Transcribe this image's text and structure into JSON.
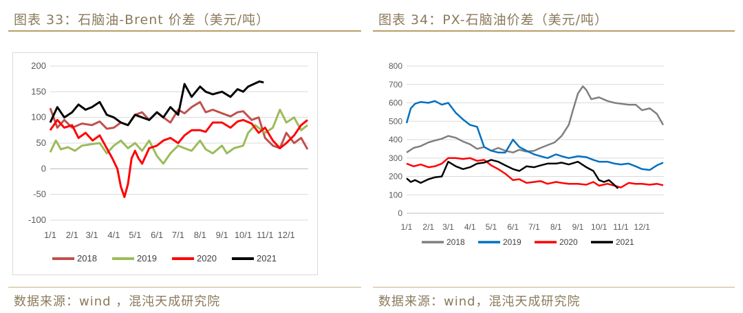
{
  "left": {
    "caption": "图表 33：石脑油-Brent 价差（美元/吨）",
    "source": "数据来源：wind ，混沌天成研究院"
  },
  "right": {
    "caption": "图表 34：PX-石脑油价差（美元/吨）",
    "source": "数据来源：wind，混沌天成研究院"
  },
  "chart_data": [
    {
      "type": "line",
      "title": "",
      "x_tick_labels": [
        "1/1",
        "2/1",
        "3/1",
        "4/1",
        "5/1",
        "6/1",
        "7/1",
        "8/1",
        "9/1",
        "10/1",
        "11/1",
        "12/1"
      ],
      "x_unit": "day_of_year",
      "ylim": [
        -100,
        200
      ],
      "yticks": [
        -100,
        -50,
        0,
        50,
        100,
        150,
        200
      ],
      "grid": true,
      "legend_position": "bottom",
      "series": [
        {
          "name": "2018",
          "color": "#c0504d",
          "x": [
            0,
            10,
            20,
            31,
            45,
            59,
            70,
            80,
            90,
            100,
            110,
            120,
            130,
            140,
            151,
            160,
            170,
            181,
            190,
            200,
            212,
            220,
            230,
            243,
            255,
            265,
            273,
            285,
            295,
            304,
            315,
            325,
            334,
            345,
            355,
            364
          ],
          "y": [
            118,
            80,
            95,
            80,
            88,
            85,
            92,
            78,
            80,
            90,
            85,
            105,
            110,
            95,
            110,
            100,
            90,
            115,
            108,
            120,
            130,
            110,
            115,
            108,
            102,
            110,
            112,
            95,
            100,
            60,
            45,
            40,
            70,
            50,
            60,
            38
          ]
        },
        {
          "name": "2019",
          "color": "#9bbb59",
          "x": [
            0,
            8,
            15,
            25,
            35,
            45,
            59,
            70,
            80,
            90,
            100,
            110,
            120,
            130,
            140,
            151,
            160,
            170,
            181,
            190,
            200,
            212,
            220,
            230,
            243,
            250,
            260,
            273,
            280,
            290,
            304,
            315,
            325,
            334,
            345,
            355,
            364
          ],
          "y": [
            32,
            55,
            38,
            42,
            35,
            45,
            48,
            50,
            30,
            45,
            55,
            40,
            50,
            35,
            55,
            25,
            10,
            30,
            45,
            40,
            35,
            55,
            38,
            30,
            45,
            30,
            40,
            45,
            70,
            85,
            70,
            80,
            115,
            90,
            100,
            75,
            85
          ]
        },
        {
          "name": "2020",
          "color": "#ff0000",
          "x": [
            0,
            10,
            20,
            31,
            40,
            50,
            60,
            70,
            80,
            88,
            95,
            100,
            105,
            110,
            115,
            120,
            125,
            130,
            135,
            140,
            151,
            160,
            170,
            181,
            190,
            200,
            212,
            220,
            230,
            243,
            255,
            265,
            273,
            285,
            295,
            304,
            315,
            325,
            334,
            345,
            355,
            364
          ],
          "y": [
            75,
            95,
            80,
            85,
            60,
            70,
            55,
            65,
            40,
            20,
            0,
            -35,
            -55,
            -30,
            20,
            35,
            20,
            10,
            25,
            40,
            45,
            55,
            60,
            50,
            65,
            75,
            75,
            72,
            90,
            90,
            80,
            92,
            95,
            88,
            70,
            80,
            55,
            40,
            50,
            65,
            85,
            95
          ]
        },
        {
          "name": "2021",
          "color": "#000000",
          "x": [
            0,
            10,
            20,
            31,
            40,
            50,
            59,
            70,
            80,
            90,
            100,
            110,
            120,
            130,
            140,
            151,
            160,
            170,
            181,
            190,
            200,
            212,
            220,
            230,
            243,
            255,
            265,
            273,
            280,
            288,
            296,
            302
          ],
          "y": [
            90,
            120,
            100,
            110,
            125,
            115,
            120,
            130,
            105,
            100,
            90,
            85,
            105,
            100,
            95,
            110,
            100,
            120,
            105,
            165,
            140,
            160,
            150,
            145,
            150,
            140,
            155,
            150,
            160,
            165,
            170,
            168
          ]
        }
      ]
    },
    {
      "type": "line",
      "title": "",
      "x_tick_labels": [
        "1/1",
        "2/1",
        "3/1",
        "4/1",
        "5/1",
        "6/1",
        "7/1",
        "8/1",
        "9/1",
        "10/1",
        "11/1",
        "12/1"
      ],
      "x_unit": "day_of_year",
      "ylim": [
        0,
        800
      ],
      "yticks": [
        0,
        100,
        200,
        300,
        400,
        500,
        600,
        700,
        800
      ],
      "grid": true,
      "legend_position": "bottom",
      "series": [
        {
          "name": "2018",
          "color": "#7f7f7f",
          "x": [
            0,
            10,
            20,
            31,
            40,
            50,
            59,
            70,
            80,
            90,
            100,
            110,
            120,
            130,
            140,
            151,
            160,
            170,
            181,
            190,
            200,
            210,
            220,
            230,
            236,
            243,
            250,
            255,
            262,
            273,
            285,
            295,
            304,
            315,
            325,
            334,
            345,
            355,
            364
          ],
          "y": [
            330,
            355,
            365,
            385,
            395,
            405,
            420,
            410,
            390,
            375,
            350,
            360,
            340,
            355,
            340,
            330,
            345,
            335,
            340,
            355,
            370,
            385,
            420,
            480,
            560,
            650,
            690,
            670,
            620,
            630,
            610,
            600,
            595,
            590,
            590,
            560,
            570,
            540,
            480
          ]
        },
        {
          "name": "2019",
          "color": "#0070c0",
          "x": [
            0,
            6,
            12,
            20,
            31,
            40,
            50,
            59,
            70,
            80,
            90,
            100,
            110,
            120,
            130,
            140,
            151,
            160,
            170,
            181,
            190,
            200,
            212,
            220,
            230,
            243,
            255,
            265,
            273,
            285,
            295,
            304,
            315,
            325,
            334,
            345,
            355,
            364
          ],
          "y": [
            490,
            570,
            595,
            605,
            600,
            610,
            590,
            600,
            545,
            510,
            480,
            470,
            360,
            340,
            330,
            330,
            400,
            360,
            340,
            320,
            310,
            300,
            320,
            310,
            300,
            310,
            305,
            290,
            280,
            280,
            270,
            265,
            270,
            255,
            240,
            235,
            260,
            275
          ]
        },
        {
          "name": "2020",
          "color": "#ff0000",
          "x": [
            0,
            10,
            20,
            31,
            40,
            50,
            59,
            70,
            80,
            90,
            100,
            110,
            120,
            130,
            140,
            151,
            160,
            170,
            181,
            190,
            200,
            212,
            220,
            230,
            243,
            255,
            265,
            273,
            285,
            295,
            304,
            315,
            325,
            334,
            345,
            355,
            364
          ],
          "y": [
            270,
            255,
            265,
            250,
            255,
            270,
            300,
            300,
            295,
            300,
            285,
            290,
            260,
            240,
            215,
            180,
            185,
            165,
            170,
            175,
            160,
            170,
            165,
            160,
            160,
            155,
            170,
            150,
            160,
            150,
            140,
            165,
            160,
            160,
            155,
            160,
            152
          ]
        },
        {
          "name": "2021",
          "color": "#000000",
          "x": [
            0,
            6,
            12,
            20,
            31,
            40,
            50,
            59,
            70,
            80,
            90,
            100,
            110,
            120,
            130,
            140,
            151,
            160,
            170,
            181,
            190,
            200,
            212,
            220,
            230,
            243,
            255,
            265,
            273,
            280,
            287,
            293,
            300
          ],
          "y": [
            190,
            170,
            180,
            165,
            185,
            195,
            200,
            280,
            255,
            240,
            250,
            270,
            275,
            290,
            280,
            260,
            240,
            230,
            255,
            250,
            260,
            270,
            270,
            275,
            265,
            280,
            250,
            230,
            180,
            170,
            180,
            160,
            135
          ]
        }
      ]
    }
  ]
}
